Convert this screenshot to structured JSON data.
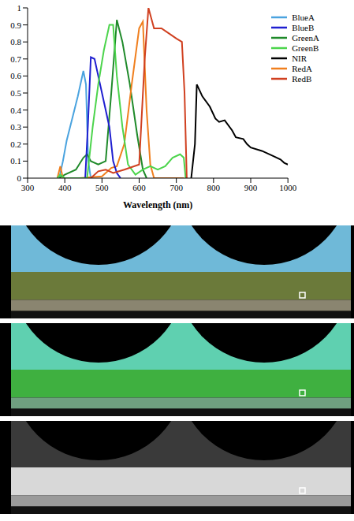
{
  "chart_data": {
    "type": "line",
    "xlabel": "Wavelength (nm)",
    "xlim": [
      300,
      1000
    ],
    "xticks": [
      300,
      400,
      500,
      600,
      700,
      800,
      900,
      1000
    ],
    "ylim": [
      0,
      1
    ],
    "yticks": [
      0,
      0.1,
      0.2,
      0.3,
      0.4,
      0.5,
      0.6,
      0.7,
      0.8,
      0.9,
      1
    ],
    "grid": false,
    "legend": "upper right",
    "series": [
      {
        "name": "BlueA",
        "color": "#4aa3df",
        "x": [
          385,
          395,
          405,
          420,
          435,
          450,
          457,
          463,
          470
        ],
        "values": [
          0,
          0.1,
          0.22,
          0.35,
          0.48,
          0.63,
          0.55,
          0.1,
          0
        ]
      },
      {
        "name": "GreenA",
        "color": "#1f8a2a",
        "x": [
          385,
          400,
          430,
          450,
          460,
          470,
          490,
          510,
          525,
          540,
          555,
          575,
          595,
          610,
          620
        ],
        "values": [
          0,
          0.02,
          0.05,
          0.12,
          0.14,
          0.1,
          0.08,
          0.1,
          0.5,
          0.93,
          0.8,
          0.55,
          0.25,
          0.05,
          0
        ]
      },
      {
        "name": "RedA",
        "color": "#f07f1e",
        "x": [
          380,
          388,
          395,
          440,
          500,
          525,
          540,
          560,
          580,
          600,
          610,
          620,
          630,
          640,
          720
        ],
        "values": [
          0,
          0.07,
          0,
          0,
          0.01,
          0.06,
          0.07,
          0.2,
          0.55,
          0.88,
          0.92,
          0.4,
          0.08,
          0,
          0
        ]
      },
      {
        "name": "BlueB",
        "color": "#1f1fd0",
        "x": [
          455,
          462,
          470,
          480,
          490,
          505,
          520,
          530,
          540,
          550
        ],
        "values": [
          0,
          0.3,
          0.71,
          0.7,
          0.6,
          0.45,
          0.3,
          0.1,
          0.03,
          0
        ]
      },
      {
        "name": "GreenB",
        "color": "#4cd44c",
        "x": [
          380,
          388,
          400,
          460,
          475,
          490,
          505,
          520,
          530,
          540,
          555,
          570,
          590,
          610,
          630,
          650,
          670,
          690,
          710,
          720,
          725
        ],
        "values": [
          0,
          0.02,
          0,
          0,
          0.3,
          0.55,
          0.75,
          0.9,
          0.9,
          0.6,
          0.3,
          0.08,
          0.02,
          0.05,
          0.07,
          0.05,
          0.07,
          0.12,
          0.14,
          0.12,
          0
        ]
      },
      {
        "name": "RedB",
        "color": "#d04020",
        "x": [
          470,
          490,
          510,
          530,
          560,
          600,
          615,
          625,
          640,
          660,
          680,
          700,
          715,
          722,
          728
        ],
        "values": [
          0,
          0.04,
          0.05,
          0.03,
          0.05,
          0.08,
          0.7,
          1,
          0.88,
          0.88,
          0.85,
          0.82,
          0.8,
          0.5,
          0
        ]
      },
      {
        "name": "NIR",
        "color": "#000000",
        "x": [
          740,
          750,
          755,
          770,
          790,
          805,
          815,
          830,
          850,
          860,
          880,
          890,
          900,
          930,
          960,
          980,
          990,
          1000
        ],
        "values": [
          0,
          0.2,
          0.55,
          0.48,
          0.42,
          0.35,
          0.33,
          0.34,
          0.28,
          0.24,
          0.23,
          0.2,
          0.18,
          0.16,
          0.13,
          0.11,
          0.09,
          0.08
        ]
      }
    ]
  }
}
